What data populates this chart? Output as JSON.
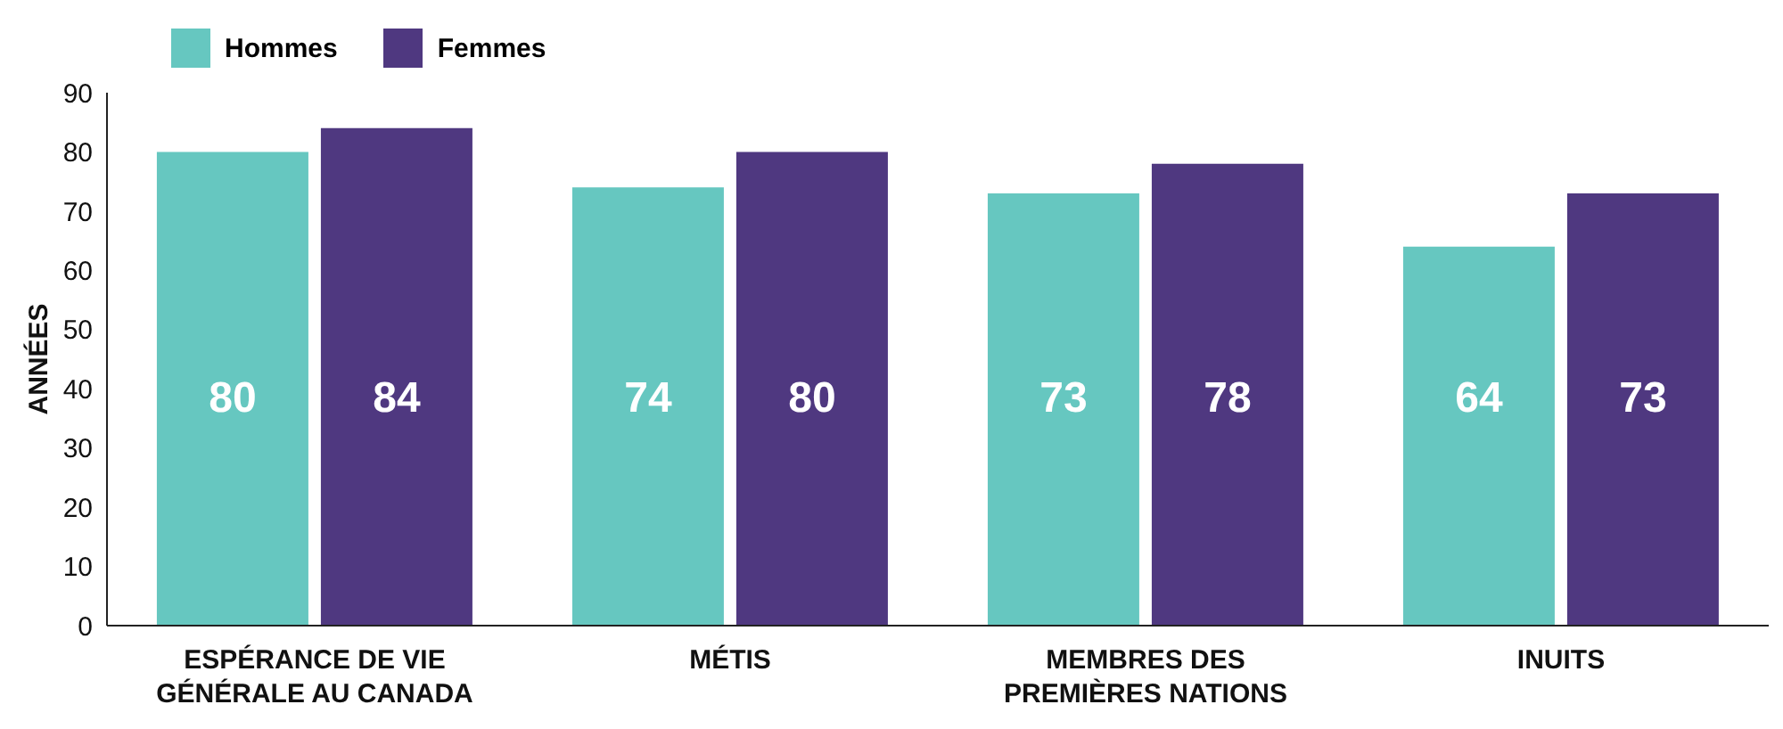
{
  "chart_data": {
    "type": "bar",
    "ylabel": "ANNÉES",
    "categories": [
      "ESPÉRANCE DE VIE GÉNÉRALE AU CANADA",
      "MÉTIS",
      "MEMBRES DES PREMIÈRES NATIONS",
      "INUITS"
    ],
    "series": [
      {
        "name": "Hommes",
        "color": "#66c7c0",
        "values": [
          80,
          74,
          73,
          64
        ]
      },
      {
        "name": "Femmes",
        "color": "#4f3880",
        "values": [
          84,
          80,
          78,
          73
        ]
      }
    ],
    "ylim": [
      0,
      90
    ],
    "yticks": [
      0,
      10,
      20,
      30,
      40,
      50,
      60,
      70,
      80,
      90
    ],
    "grid": false,
    "legend": "top left",
    "data_labels": true
  }
}
